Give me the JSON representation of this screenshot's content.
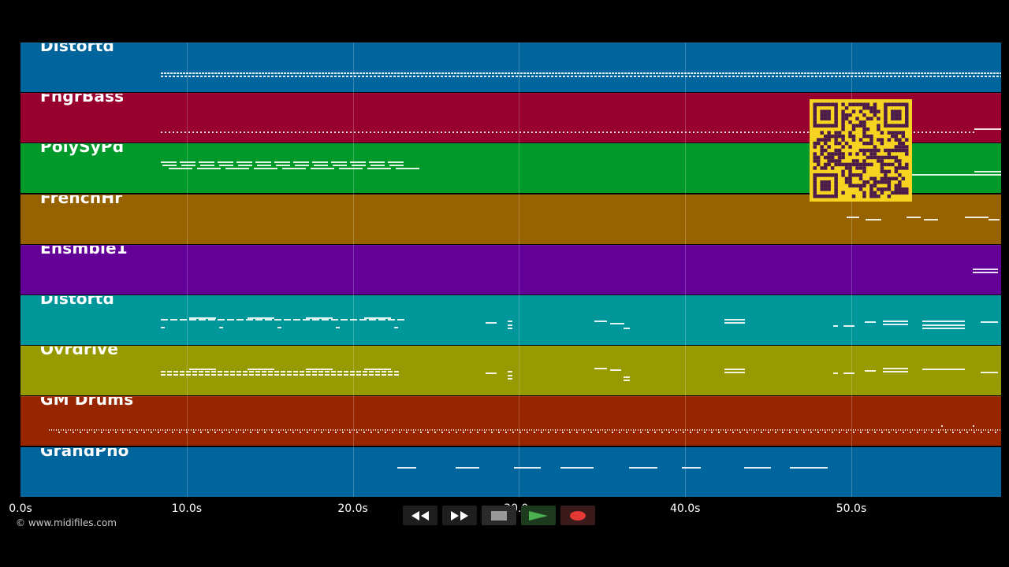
{
  "tracks": [
    {
      "name": "Distortd",
      "color": "#00659c"
    },
    {
      "name": "FngrBass",
      "color": "#97002f"
    },
    {
      "name": "PolySyPd",
      "color": "#009a2b"
    },
    {
      "name": "FrenchHr",
      "color": "#966300"
    },
    {
      "name": "Ensmble1",
      "color": "#630097"
    },
    {
      "name": "Distortd",
      "color": "#00979a"
    },
    {
      "name": "Ovrdrive",
      "color": "#979a00"
    },
    {
      "name": "GM Drums",
      "color": "#972600"
    },
    {
      "name": "GrandPno",
      "color": "#00659c"
    }
  ],
  "time_axis": {
    "ticks": [
      "0.0s",
      "10.0s",
      "20.0s",
      "30.0s",
      "40.0s",
      "50.0s"
    ]
  },
  "copyright": "© www.midifiles.com",
  "controls": {
    "rewind_icon": "rewind-icon",
    "fast_forward_icon": "fast-forward-icon",
    "stop_icon": "stop-icon",
    "play_icon": "play-icon",
    "record_icon": "record-icon",
    "play_color": "#4caf50",
    "record_color": "#e53935"
  }
}
